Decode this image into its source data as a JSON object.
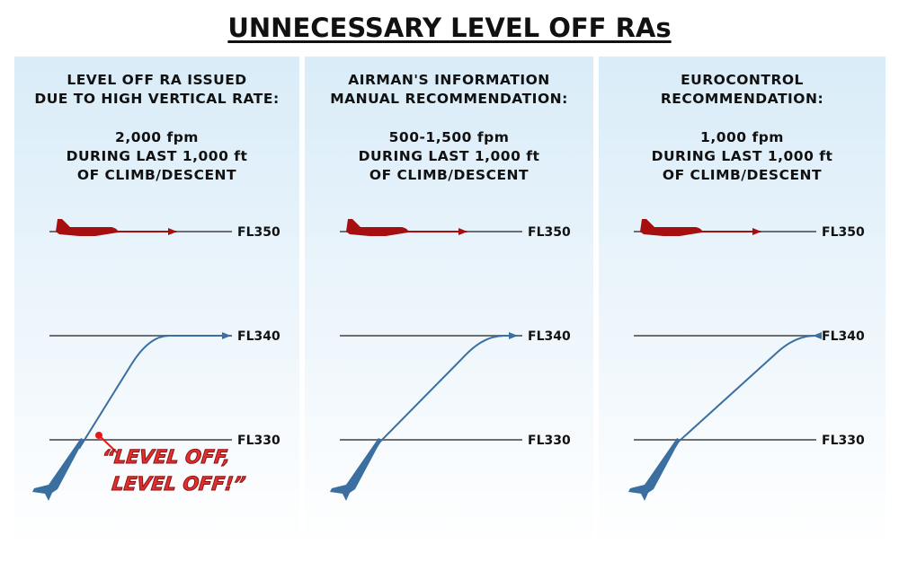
{
  "title": "UNNECESSARY LEVEL OFF RAs",
  "panels": [
    {
      "heading": [
        "LEVEL OFF RA ISSUED",
        "DUE TO HIGH VERTICAL RATE:"
      ],
      "rate": [
        "2,000 fpm",
        "DURING LAST 1,000 ft",
        "OF CLIMB/DESCENT"
      ]
    },
    {
      "heading": [
        "AIRMAN'S INFORMATION",
        "MANUAL RECOMMENDATION:"
      ],
      "rate": [
        "500-1,500 fpm",
        "DURING LAST 1,000 ft",
        "OF CLIMB/DESCENT"
      ]
    },
    {
      "heading": [
        "EUROCONTROL",
        "RECOMMENDATION:"
      ],
      "rate": [
        "1,000 fpm",
        "DURING LAST 1,000 ft",
        "OF CLIMB/DESCENT"
      ]
    }
  ],
  "flight_levels": [
    "FL350",
    "FL340",
    "FL330"
  ],
  "callout": [
    "“LEVEL OFF,",
    "LEVEL OFF!”"
  ],
  "colors": {
    "intruder": "#a50f0f",
    "own": "#3b6fa0",
    "level_line": "#6b6f73",
    "ra_point": "#e81818"
  }
}
